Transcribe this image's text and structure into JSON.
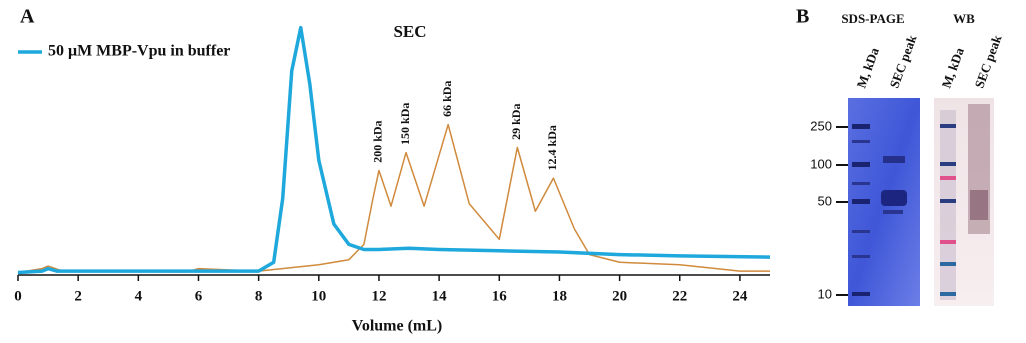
{
  "chart_data": {
    "type": "line",
    "panel_label": "A",
    "title": "SEC",
    "x_label": "Volume (mL)",
    "xlim": [
      0,
      25
    ],
    "xticks": [
      0,
      2,
      4,
      6,
      8,
      10,
      12,
      14,
      16,
      18,
      20,
      22,
      24
    ],
    "ylim": [
      0,
      100
    ],
    "series": [
      {
        "name": "50 μM MBP-Vpu in buffer",
        "color": "#1fa8dc",
        "x": [
          0,
          0.8,
          1.0,
          1.3,
          8,
          8.5,
          8.8,
          9.1,
          9.4,
          9.7,
          10,
          10.5,
          11,
          11.5,
          12,
          13,
          14,
          16,
          18,
          20,
          22,
          25
        ],
        "values": [
          1,
          1.5,
          2.5,
          1.5,
          1.5,
          5,
          30,
          80,
          97,
          75,
          45,
          20,
          12,
          10,
          10,
          10.5,
          10,
          9.5,
          9,
          8,
          7.5,
          7
        ]
      },
      {
        "color": "#d08a3c",
        "x": [
          0,
          0.8,
          1.0,
          1.5,
          5.6,
          6,
          8,
          10,
          11,
          11.5,
          11.8,
          12.0,
          12.4,
          12.9,
          13.5,
          14.3,
          15.0,
          16.0,
          16.6,
          17.2,
          17.8,
          18.5,
          19,
          20,
          22,
          24,
          25
        ],
        "values": [
          1,
          2.5,
          3.5,
          1.5,
          1.2,
          2.5,
          1.5,
          4,
          6,
          12,
          30,
          41,
          27,
          48,
          27,
          59,
          28,
          14,
          50,
          25,
          38,
          18,
          8,
          5,
          4,
          1.5,
          1.5
        ]
      }
    ],
    "annotations": [
      {
        "text": "200 kDa",
        "x": 12.0,
        "y": 44
      },
      {
        "text": "150 kDa",
        "x": 12.9,
        "y": 51
      },
      {
        "text": "66 kDa",
        "x": 14.3,
        "y": 62
      },
      {
        "text": "29 kDa",
        "x": 16.6,
        "y": 53
      },
      {
        "text": "12.4 kDa",
        "x": 17.8,
        "y": 41
      }
    ]
  },
  "panel_b": {
    "panel_label": "B",
    "sds_title": "SDS-PAGE",
    "wb_title": "WB",
    "sds_lanes": [
      "M, kDa",
      "SEC peak"
    ],
    "wb_lanes": [
      "M, kDa",
      "SEC peak"
    ],
    "markers": [
      "250",
      "100",
      "50",
      "10"
    ]
  }
}
